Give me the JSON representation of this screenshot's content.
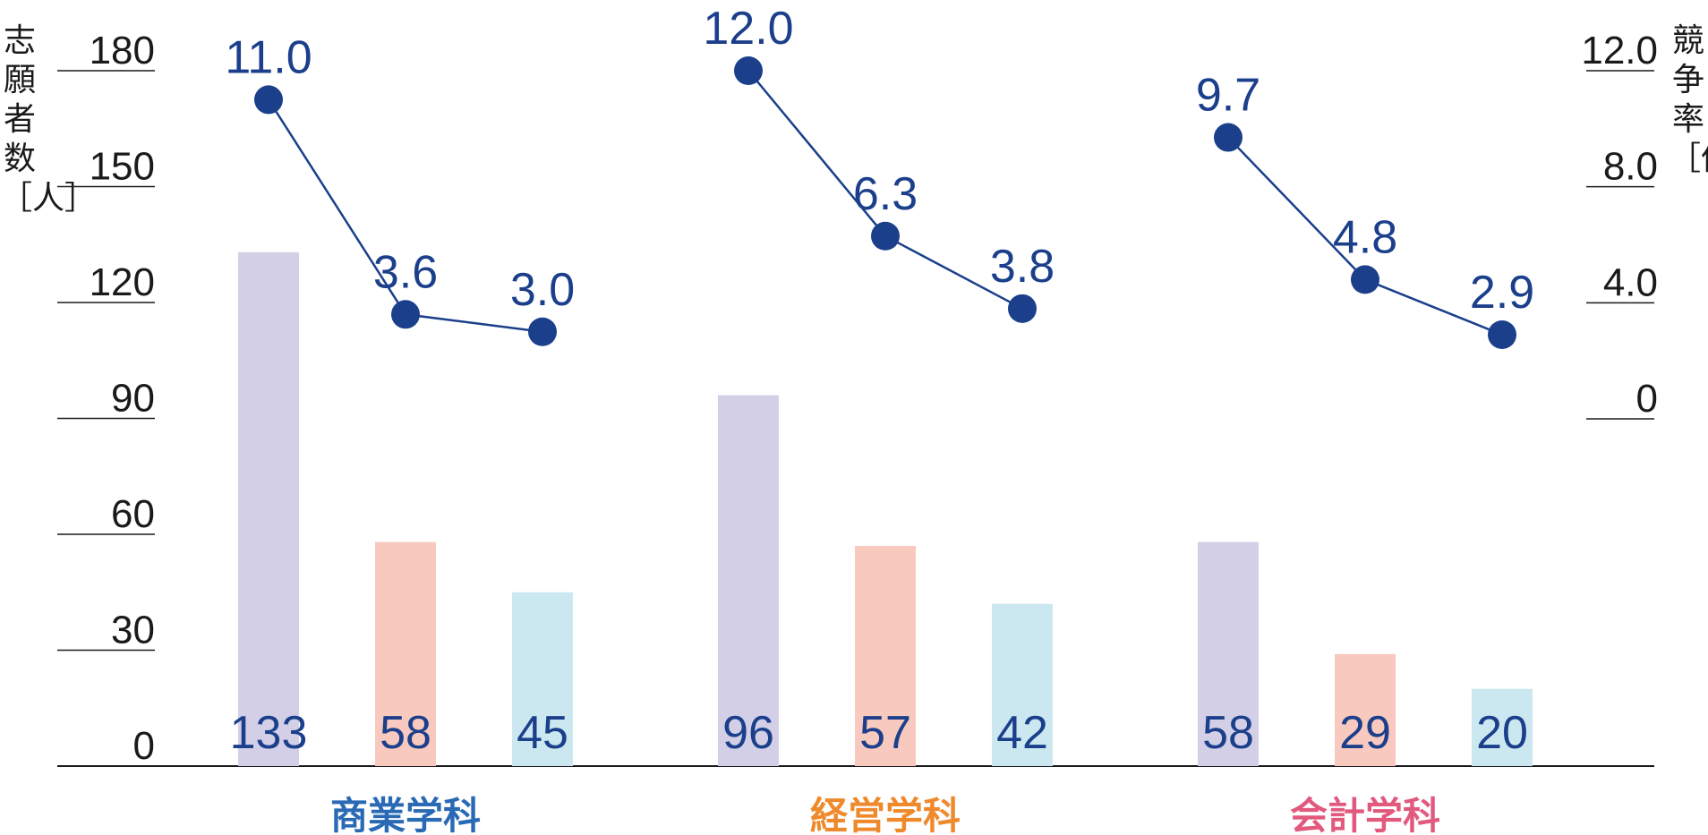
{
  "left_axis_label": "志願者数［人］",
  "right_axis_label": "競争率［倍］",
  "colors": {
    "bar_series": [
      "#d3cfe7",
      "#f8c9bf",
      "#cbe8f1"
    ],
    "line": "#1b3f8b",
    "category_text": [
      "#2a6ab5",
      "#ef8a2c",
      "#e2597e"
    ],
    "axis": "#1a1a1a"
  },
  "chart_data": {
    "type": "bar",
    "categories": [
      "商業学科",
      "経営学科",
      "会計学科"
    ],
    "series": [
      {
        "values": [
          133,
          96,
          58
        ]
      },
      {
        "values": [
          58,
          57,
          29
        ]
      },
      {
        "values": [
          45,
          42,
          20
        ]
      }
    ],
    "rate_series": [
      {
        "values": [
          11.0,
          3.6,
          3.0
        ]
      },
      {
        "values": [
          12.0,
          6.3,
          3.8
        ]
      },
      {
        "values": [
          9.7,
          4.8,
          2.9
        ]
      }
    ],
    "rate_labels": [
      [
        "11.0",
        "3.6",
        "3.0"
      ],
      [
        "12.0",
        "6.3",
        "3.8"
      ],
      [
        "9.7",
        "4.8",
        "2.9"
      ]
    ],
    "left_axis": {
      "ticks": [
        "0",
        "30",
        "60",
        "90",
        "120",
        "150",
        "180"
      ],
      "ylim": [
        0,
        180
      ]
    },
    "right_axis": {
      "ticks": [
        "0",
        "4.0",
        "8.0",
        "12.0"
      ],
      "ylim": [
        0,
        12
      ]
    },
    "grid": false,
    "legend": "none"
  }
}
